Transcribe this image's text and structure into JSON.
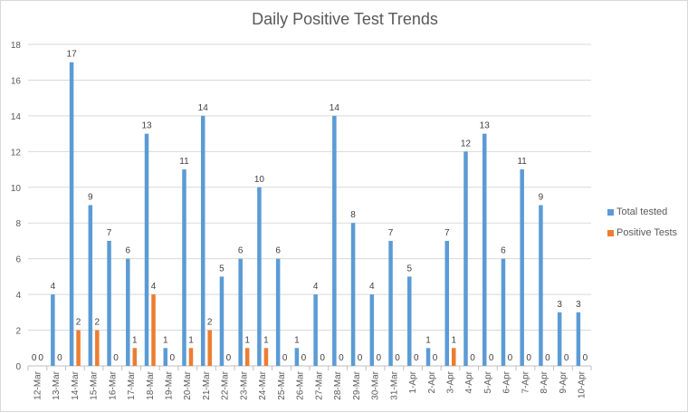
{
  "chart_data": {
    "type": "bar",
    "title": "Daily Positive Test Trends",
    "xlabel": "",
    "ylabel": "",
    "ylim": [
      0,
      18
    ],
    "yticks": [
      0,
      2,
      4,
      6,
      8,
      10,
      12,
      14,
      16,
      18
    ],
    "grid": true,
    "legend_position": "right",
    "categories": [
      "12-Mar",
      "13-Mar",
      "14-Mar",
      "15-Mar",
      "16-Mar",
      "17-Mar",
      "18-Mar",
      "19-Mar",
      "20-Mar",
      "21-Mar",
      "22-Mar",
      "23-Mar",
      "24-Mar",
      "25-Mar",
      "26-Mar",
      "27-Mar",
      "28-Mar",
      "29-Mar",
      "30-Mar",
      "31-Mar",
      "1-Apr",
      "2-Apr",
      "3-Apr",
      "4-Apr",
      "5-Apr",
      "6-Apr",
      "7-Apr",
      "8-Apr",
      "9-Apr",
      "10-Apr"
    ],
    "series": [
      {
        "name": "Total tested",
        "color": "#5b9bd5",
        "values": [
          0,
          4,
          17,
          9,
          7,
          6,
          13,
          1,
          11,
          14,
          5,
          6,
          10,
          6,
          1,
          4,
          14,
          8,
          4,
          7,
          5,
          1,
          7,
          12,
          13,
          6,
          11,
          9,
          3,
          3
        ]
      },
      {
        "name": "Positive Tests",
        "color": "#ed7d31",
        "values": [
          0,
          0,
          2,
          2,
          0,
          1,
          4,
          0,
          1,
          2,
          0,
          1,
          1,
          0,
          0,
          0,
          0,
          0,
          0,
          0,
          0,
          0,
          1,
          0,
          0,
          0,
          0,
          0,
          0,
          0
        ]
      }
    ]
  }
}
